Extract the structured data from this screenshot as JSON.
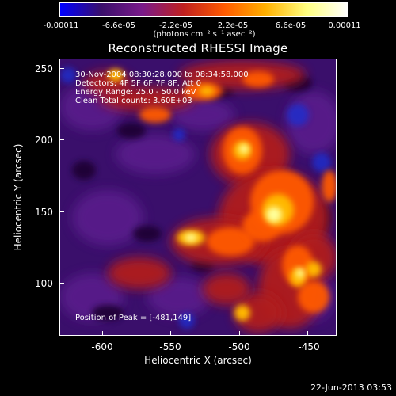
{
  "colorbar": {
    "tick_labels": [
      "-0.00011",
      "-6.6e-05",
      "-2.2e-05",
      "2.2e-05",
      "6.6e-05",
      "0.00011"
    ],
    "units_label": "(photons cm⁻² s⁻¹ asec⁻²)",
    "colors": [
      "#0000ff",
      "#3a0f6b",
      "#7a1a8a",
      "#c02020",
      "#ff5a00",
      "#ffb000",
      "#ffff80",
      "#ffffff"
    ]
  },
  "plot": {
    "title": "Reconstructed RHESSI Image",
    "annotations": [
      "30-Nov-2004 08:30:28.000 to 08:34:58.000",
      "Detectors: 4F 5F 6F 7F 8F, Att 0",
      "Energy Range: 25.0 - 50.0 keV",
      "Clean     Total counts: 3.60E+03"
    ],
    "peak_label": "Position of Peak = [-481,149]",
    "xlabel": "Heliocentric X (arcsec)",
    "ylabel": "Heliocentric Y (arcsec)",
    "x_ticks": [
      "-600",
      "-550",
      "-500",
      "-450"
    ],
    "y_ticks": [
      "250",
      "200",
      "150",
      "100"
    ],
    "xlim": [
      -630,
      -435
    ],
    "ylim": [
      60,
      255
    ],
    "peak": [
      -481,
      149
    ]
  },
  "footer": {
    "timestamp": "22-Jun-2013 03:53"
  }
}
